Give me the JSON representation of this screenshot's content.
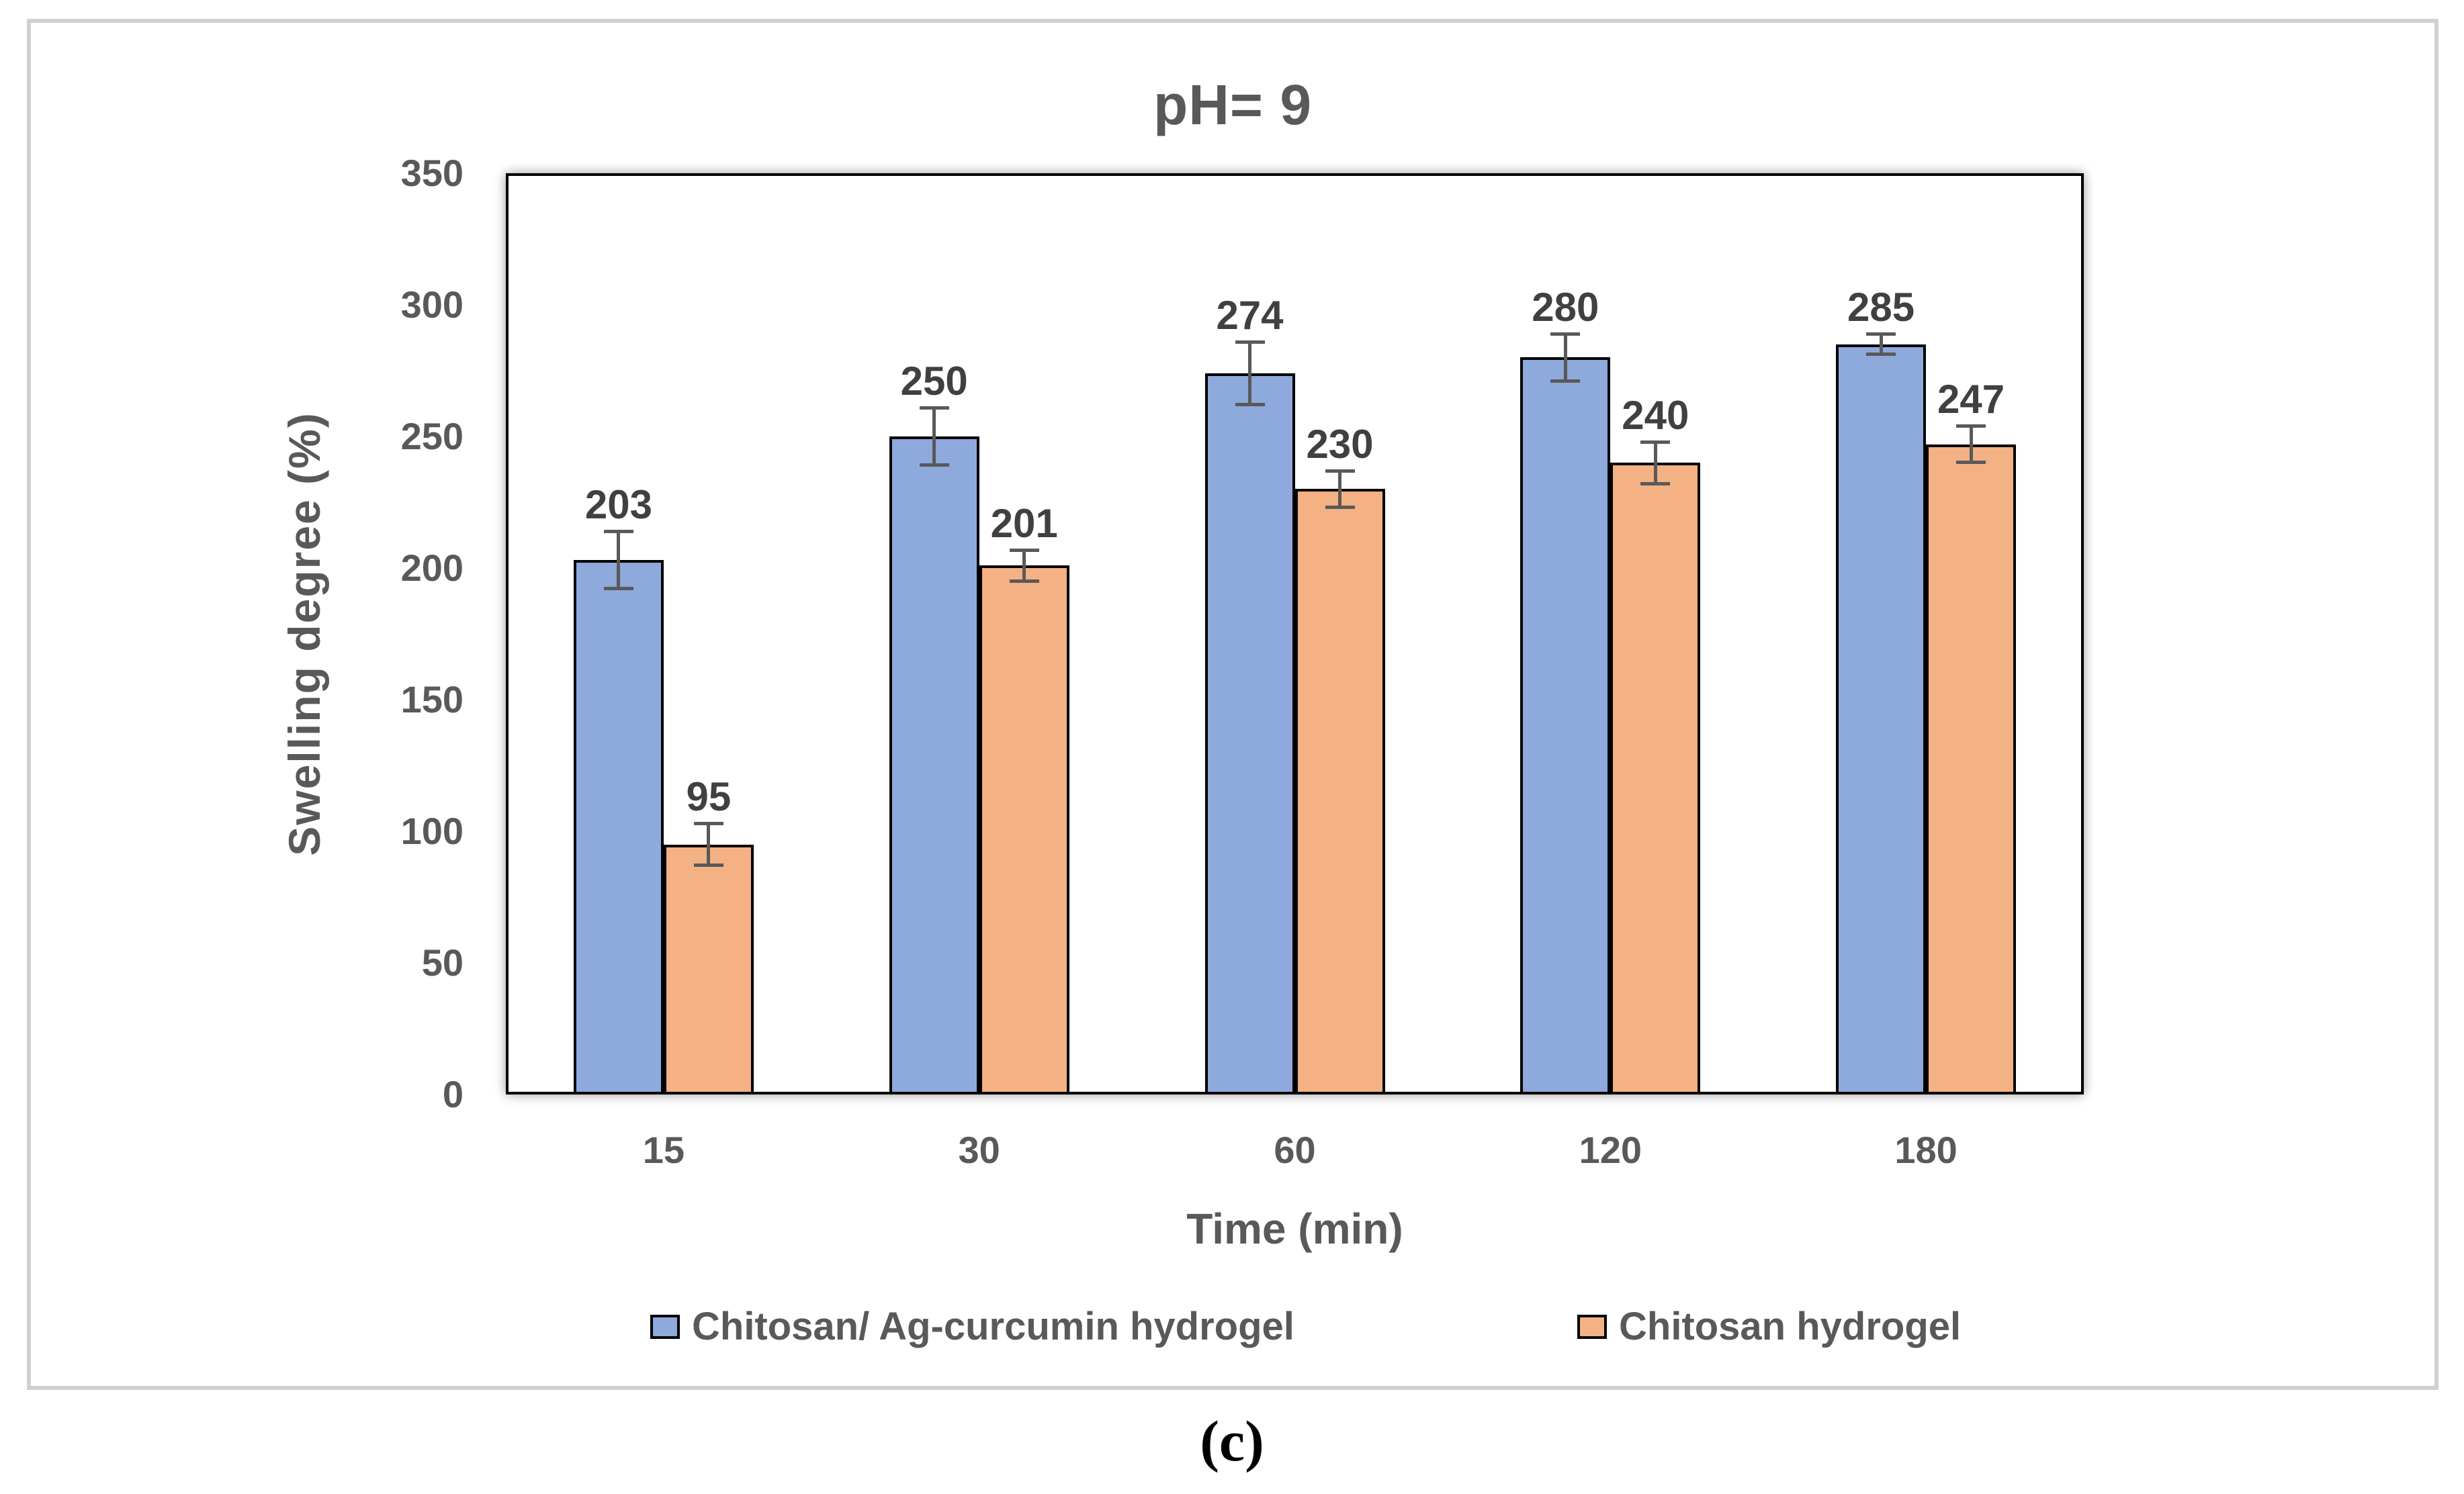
{
  "figure": {
    "caption": "(c)"
  },
  "chart_data": {
    "type": "bar",
    "title": "pH= 9",
    "xlabel": "Time (min)",
    "ylabel": "Swelling degree (%)",
    "categories": [
      "15",
      "30",
      "60",
      "120",
      "180"
    ],
    "series": [
      {
        "name": "Chitosan/ Ag-curcumin hydrogel",
        "color": "#8EA9DB",
        "values": [
          203,
          250,
          274,
          280,
          285
        ],
        "errors": [
          11,
          11,
          12,
          9,
          4
        ]
      },
      {
        "name": "Chitosan hydrogel",
        "color": "#F4B183",
        "values": [
          95,
          201,
          230,
          240,
          247
        ],
        "errors": [
          8,
          6,
          7,
          8,
          7
        ]
      }
    ],
    "ylim": [
      0,
      350
    ],
    "yticks": [
      0,
      50,
      100,
      150,
      200,
      250,
      300,
      350
    ],
    "grid": false,
    "legend_position": "bottom",
    "bar_outline_color": "#000000",
    "error_bar_color": "#595959",
    "data_labels": true
  }
}
